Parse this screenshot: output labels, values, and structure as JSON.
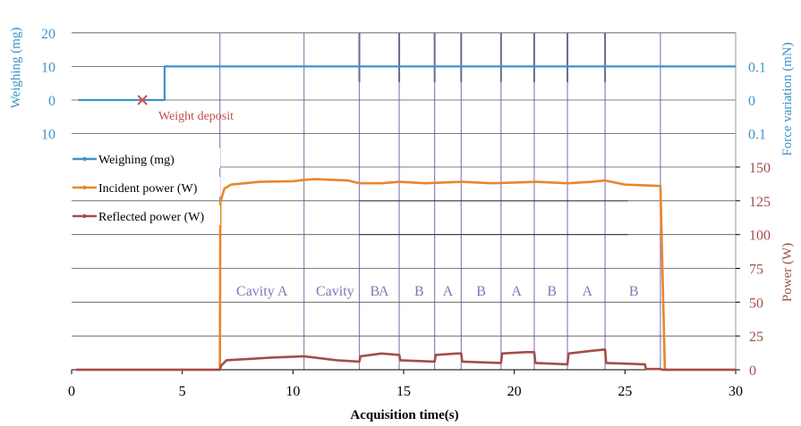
{
  "chart_data": {
    "type": "line",
    "xlabel": "Acquisition time(s)",
    "xlim": [
      0,
      30
    ],
    "x_ticks": [
      "0",
      "5",
      "10",
      "15",
      "20",
      "25",
      "30"
    ],
    "colors": {
      "weighing": "#3d93c8",
      "incident": "#e8862e",
      "reflected": "#a24e4a",
      "left_axis": "#3d93c8",
      "right_power_axis": "#a24e4a",
      "marker": "#d05050",
      "phase_lines": "#8c84b8",
      "phase_text": "#7f78b4",
      "gridlines": "#000000"
    },
    "top_panel": {
      "left_axis": {
        "label": "Weighing (mg)",
        "tick_labels": [
          "20",
          "10",
          "0",
          "10"
        ],
        "tick_values": [
          20,
          10,
          0,
          -10
        ]
      },
      "right_axis": {
        "label": "Force variation (mN)",
        "tick_labels": [
          "0.1",
          "0",
          "0.1"
        ],
        "tick_values": [
          0.1,
          0,
          -0.1
        ]
      },
      "annotation": {
        "label": "Weight deposit",
        "x": 3.2,
        "y": 0
      }
    },
    "bottom_panel": {
      "right_axis": {
        "label": "Power (W)",
        "ylim": [
          0,
          150
        ],
        "tick_labels": [
          "150",
          "125",
          "100",
          "75",
          "50",
          "25",
          "0"
        ],
        "tick_values": [
          150,
          125,
          100,
          75,
          50,
          25,
          0
        ]
      }
    },
    "legend": {
      "placement": "top-left",
      "entries": [
        "Weighing (mg)",
        "Incident power (W)",
        "Reflected power (W)"
      ]
    },
    "phase_boundaries": [
      6.7,
      10.5,
      13.0,
      14.8,
      16.4,
      17.6,
      19.4,
      20.9,
      22.4,
      24.1,
      26.6
    ],
    "phases": [
      {
        "label": "Cavity A",
        "x": 8.6
      },
      {
        "label": "Cavity",
        "x": 11.9
      },
      {
        "label": "B",
        "x": 13.7
      },
      {
        "label": "A",
        "x": 14.1
      },
      {
        "label": "B",
        "x": 15.7
      },
      {
        "label": "A",
        "x": 17.0
      },
      {
        "label": "B",
        "x": 18.5
      },
      {
        "label": "A",
        "x": 20.1
      },
      {
        "label": "B",
        "x": 21.7
      },
      {
        "label": "A",
        "x": 23.3
      },
      {
        "label": "B",
        "x": 25.4
      }
    ],
    "series": [
      {
        "name": "Weighing (mg)",
        "panel": "top",
        "x": [
          0.3,
          4.2,
          4.2,
          30
        ],
        "y": [
          0,
          0,
          10,
          10
        ]
      },
      {
        "name": "Incident power (W)",
        "panel": "bottom",
        "x": [
          0.2,
          6.7,
          6.72,
          6.9,
          7.2,
          8.5,
          10.0,
          10.5,
          11.0,
          12.5,
          13.0,
          14.0,
          14.8,
          16.0,
          17.6,
          19.0,
          20.0,
          21.0,
          22.4,
          23.5,
          24.1,
          25.0,
          26.6,
          26.8,
          27.0,
          30.0
        ],
        "y": [
          0,
          0,
          124,
          134,
          137,
          139,
          139.5,
          140.5,
          141,
          140,
          138,
          138,
          139,
          138,
          139,
          138,
          138.5,
          139,
          138,
          139,
          140,
          137,
          136,
          0,
          0,
          0
        ]
      },
      {
        "name": "Reflected power (W)",
        "panel": "bottom",
        "x": [
          0.2,
          6.7,
          6.75,
          7.0,
          8.0,
          9.0,
          10.5,
          11.0,
          12.0,
          13.0,
          13.05,
          14.0,
          14.8,
          14.85,
          16.4,
          16.45,
          17.4,
          17.6,
          17.65,
          19.4,
          19.45,
          20.5,
          20.9,
          20.95,
          22.4,
          22.45,
          23.5,
          24.1,
          24.15,
          25.9,
          25.95,
          26.6,
          26.7,
          30.0
        ],
        "y": [
          0,
          0,
          3,
          7,
          8,
          9,
          10,
          9,
          7,
          6,
          10,
          12,
          11,
          7,
          6,
          11,
          12,
          12,
          6,
          5,
          12,
          13,
          13,
          5,
          4,
          12,
          14,
          15,
          5,
          4,
          0.5,
          0.5,
          0,
          0
        ]
      }
    ]
  }
}
